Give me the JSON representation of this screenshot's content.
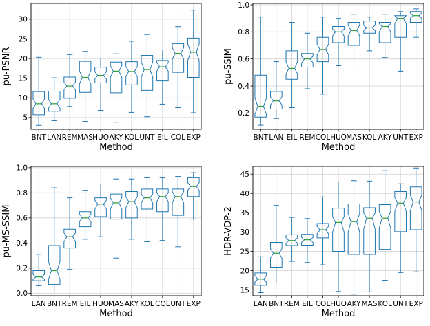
{
  "chart_data": [
    {
      "type": "boxplot",
      "xlabel": "Method",
      "ylabel": "pu-PSNR",
      "ylim": [
        2,
        34
      ],
      "yticks": [
        5,
        10,
        15,
        20,
        25,
        30
      ],
      "grid": true,
      "notched": true,
      "box_color": "#1f77b4",
      "median_color": "#2ca02c",
      "categories": [
        "BNT",
        "LAN",
        "REM",
        "MAS",
        "HUO",
        "AKY",
        "KOL",
        "UNT",
        "EIL",
        "COL",
        "EXP"
      ],
      "series": [
        {
          "category": "BNT",
          "whisker_low": 3.0,
          "q1": 5.7,
          "median": 8.5,
          "q3": 11.6,
          "whisker_high": 20.3,
          "notch": [
            7.3,
            9.7
          ]
        },
        {
          "category": "LAN",
          "whisker_low": 4.2,
          "q1": 6.6,
          "median": 8.5,
          "q3": 11.7,
          "whisker_high": 15.1,
          "notch": [
            7.4,
            9.6
          ]
        },
        {
          "category": "REM",
          "whisker_low": 7.8,
          "q1": 9.9,
          "median": 13.0,
          "q3": 15.3,
          "whisker_high": 21.0,
          "notch": [
            12.0,
            14.0
          ]
        },
        {
          "category": "MAS",
          "whisker_low": 4.0,
          "q1": 11.4,
          "median": 15.2,
          "q3": 19.3,
          "whisker_high": 21.8,
          "notch": [
            13.5,
            16.9
          ]
        },
        {
          "category": "HUO",
          "whisker_low": 6.8,
          "q1": 13.8,
          "median": 15.7,
          "q3": 17.8,
          "whisker_high": 20.1,
          "notch": [
            14.8,
            16.6
          ]
        },
        {
          "category": "AKY",
          "whisker_low": 3.8,
          "q1": 11.3,
          "median": 16.8,
          "q3": 19.1,
          "whisker_high": 21.2,
          "notch": [
            15.2,
            18.2
          ]
        },
        {
          "category": "KOL",
          "whisker_low": 6.3,
          "q1": 13.3,
          "median": 16.7,
          "q3": 19.2,
          "whisker_high": 24.4,
          "notch": [
            15.4,
            18.0
          ]
        },
        {
          "category": "UNT",
          "whisker_low": 5.2,
          "q1": 11.9,
          "median": 17.2,
          "q3": 20.8,
          "whisker_high": 26.1,
          "notch": [
            15.3,
            19.1
          ]
        },
        {
          "category": "EIL",
          "whisker_low": 8.4,
          "q1": 14.3,
          "median": 17.9,
          "q3": 19.5,
          "whisker_high": 22.2,
          "notch": [
            16.8,
            19.0
          ]
        },
        {
          "category": "COL",
          "whisker_low": 7.5,
          "q1": 16.5,
          "median": 21.3,
          "q3": 23.8,
          "whisker_high": 28.1,
          "notch": [
            19.8,
            22.8
          ]
        },
        {
          "category": "EXP",
          "whisker_low": 6.2,
          "q1": 15.2,
          "median": 21.6,
          "q3": 25.2,
          "whisker_high": 32.3,
          "notch": [
            19.5,
            23.7
          ]
        }
      ]
    },
    {
      "type": "boxplot",
      "xlabel": "Method",
      "ylabel": "pu-SSIM",
      "ylim": [
        0.08,
        1.01
      ],
      "yticks": [
        0.2,
        0.4,
        0.6,
        0.8,
        1.0
      ],
      "grid": true,
      "notched": true,
      "box_color": "#1f77b4",
      "median_color": "#2ca02c",
      "categories": [
        "BNT",
        "LAN",
        "EIL",
        "REM",
        "COL",
        "HUO",
        "MAS",
        "KOL",
        "AKY",
        "UNT",
        "EXP"
      ],
      "series": [
        {
          "category": "BNT",
          "whisker_low": 0.11,
          "q1": 0.17,
          "median": 0.25,
          "q3": 0.48,
          "whisker_high": 0.91,
          "notch": [
            0.19,
            0.31
          ]
        },
        {
          "category": "LAN",
          "whisker_low": 0.16,
          "q1": 0.23,
          "median": 0.29,
          "q3": 0.36,
          "whisker_high": 0.58,
          "notch": [
            0.26,
            0.32
          ]
        },
        {
          "category": "EIL",
          "whisker_low": 0.24,
          "q1": 0.45,
          "median": 0.53,
          "q3": 0.66,
          "whisker_high": 0.87,
          "notch": [
            0.49,
            0.58
          ]
        },
        {
          "category": "REM",
          "whisker_low": 0.38,
          "q1": 0.54,
          "median": 0.6,
          "q3": 0.64,
          "whisker_high": 0.79,
          "notch": [
            0.57,
            0.62
          ]
        },
        {
          "category": "COL",
          "whisker_low": 0.34,
          "q1": 0.58,
          "median": 0.67,
          "q3": 0.76,
          "whisker_high": 0.91,
          "notch": [
            0.63,
            0.71
          ]
        },
        {
          "category": "HUO",
          "whisker_low": 0.55,
          "q1": 0.72,
          "median": 0.8,
          "q3": 0.84,
          "whisker_high": 0.9,
          "notch": [
            0.77,
            0.82
          ]
        },
        {
          "category": "MAS",
          "whisker_low": 0.54,
          "q1": 0.7,
          "median": 0.81,
          "q3": 0.87,
          "whisker_high": 0.93,
          "notch": [
            0.77,
            0.85
          ]
        },
        {
          "category": "KOL",
          "whisker_low": 0.66,
          "q1": 0.79,
          "median": 0.83,
          "q3": 0.88,
          "whisker_high": 0.91,
          "notch": [
            0.81,
            0.85
          ]
        },
        {
          "category": "AKY",
          "whisker_low": 0.61,
          "q1": 0.72,
          "median": 0.84,
          "q3": 0.87,
          "whisker_high": 0.93,
          "notch": [
            0.8,
            0.86
          ]
        },
        {
          "category": "UNT",
          "whisker_low": 0.51,
          "q1": 0.76,
          "median": 0.9,
          "q3": 0.92,
          "whisker_high": 0.95,
          "notch": [
            0.86,
            0.92
          ]
        },
        {
          "category": "EXP",
          "whisker_low": 0.76,
          "q1": 0.87,
          "median": 0.92,
          "q3": 0.95,
          "whisker_high": 0.97,
          "notch": [
            0.9,
            0.94
          ]
        }
      ]
    },
    {
      "type": "boxplot",
      "xlabel": "Method",
      "ylabel": "pu-MS-SSIM",
      "ylim": [
        -0.02,
        1.01
      ],
      "yticks": [
        0.0,
        0.2,
        0.4,
        0.6,
        0.8,
        1.0
      ],
      "grid": true,
      "notched": true,
      "box_color": "#1f77b4",
      "median_color": "#2ca02c",
      "categories": [
        "LAN",
        "BNT",
        "REM",
        "EIL",
        "HUO",
        "MAS",
        "AKY",
        "KOL",
        "COL",
        "UNT",
        "EXP"
      ],
      "series": [
        {
          "category": "LAN",
          "whisker_low": 0.06,
          "q1": 0.1,
          "median": 0.13,
          "q3": 0.18,
          "whisker_high": 0.31,
          "notch": [
            0.11,
            0.15
          ]
        },
        {
          "category": "BNT",
          "whisker_low": 0.01,
          "q1": 0.07,
          "median": 0.18,
          "q3": 0.38,
          "whisker_high": 0.84,
          "notch": [
            0.11,
            0.25
          ]
        },
        {
          "category": "REM",
          "whisker_low": 0.19,
          "q1": 0.36,
          "median": 0.45,
          "q3": 0.51,
          "whisker_high": 0.76,
          "notch": [
            0.41,
            0.48
          ]
        },
        {
          "category": "EIL",
          "whisker_low": 0.43,
          "q1": 0.53,
          "median": 0.6,
          "q3": 0.65,
          "whisker_high": 0.82,
          "notch": [
            0.57,
            0.63
          ]
        },
        {
          "category": "HUO",
          "whisker_low": 0.45,
          "q1": 0.61,
          "median": 0.71,
          "q3": 0.76,
          "whisker_high": 0.87,
          "notch": [
            0.67,
            0.74
          ]
        },
        {
          "category": "MAS",
          "whisker_low": 0.28,
          "q1": 0.59,
          "median": 0.72,
          "q3": 0.79,
          "whisker_high": 0.91,
          "notch": [
            0.67,
            0.76
          ]
        },
        {
          "category": "AKY",
          "whisker_low": 0.43,
          "q1": 0.6,
          "median": 0.73,
          "q3": 0.81,
          "whisker_high": 0.91,
          "notch": [
            0.68,
            0.77
          ]
        },
        {
          "category": "KOL",
          "whisker_low": 0.41,
          "q1": 0.67,
          "median": 0.76,
          "q3": 0.83,
          "whisker_high": 0.92,
          "notch": [
            0.72,
            0.79
          ]
        },
        {
          "category": "COL",
          "whisker_low": 0.42,
          "q1": 0.65,
          "median": 0.77,
          "q3": 0.83,
          "whisker_high": 0.92,
          "notch": [
            0.73,
            0.8
          ]
        },
        {
          "category": "UNT",
          "whisker_low": 0.37,
          "q1": 0.62,
          "median": 0.77,
          "q3": 0.83,
          "whisker_high": 0.93,
          "notch": [
            0.72,
            0.81
          ]
        },
        {
          "category": "EXP",
          "whisker_low": 0.59,
          "q1": 0.77,
          "median": 0.85,
          "q3": 0.92,
          "whisker_high": 0.96,
          "notch": [
            0.82,
            0.88
          ]
        }
      ]
    },
    {
      "type": "boxplot",
      "xlabel": "Method",
      "ylabel": "HDR-VDP-2",
      "ylim": [
        13.5,
        47
      ],
      "yticks": [
        15,
        20,
        25,
        30,
        35,
        40,
        45
      ],
      "grid": true,
      "notched": true,
      "box_color": "#1f77b4",
      "median_color": "#2ca02c",
      "categories": [
        "LAN",
        "BNT",
        "REM",
        "EIL",
        "COL",
        "HUO",
        "AKY",
        "MAS",
        "KOL",
        "UNT",
        "EXP"
      ],
      "series": [
        {
          "category": "LAN",
          "whisker_low": 14.3,
          "q1": 16.2,
          "median": 17.8,
          "q3": 19.4,
          "whisker_high": 23.6,
          "notch": [
            17.0,
            18.7
          ]
        },
        {
          "category": "BNT",
          "whisker_low": 16.8,
          "q1": 20.9,
          "median": 24.5,
          "q3": 27.3,
          "whisker_high": 36.9,
          "notch": [
            23.2,
            25.7
          ]
        },
        {
          "category": "REM",
          "whisker_low": 22.4,
          "q1": 26.5,
          "median": 27.8,
          "q3": 29.3,
          "whisker_high": 33.8,
          "notch": [
            27.1,
            28.5
          ]
        },
        {
          "category": "EIL",
          "whisker_low": 22.1,
          "q1": 26.6,
          "median": 28.0,
          "q3": 29.4,
          "whisker_high": 33.5,
          "notch": [
            27.3,
            28.6
          ]
        },
        {
          "category": "COL",
          "whisker_low": 21.5,
          "q1": 28.5,
          "median": 30.6,
          "q3": 32.2,
          "whisker_high": 39.1,
          "notch": [
            29.5,
            31.5
          ]
        },
        {
          "category": "HUO",
          "whisker_low": 14.6,
          "q1": 25.0,
          "median": 32.5,
          "q3": 36.2,
          "whisker_high": 43.0,
          "notch": [
            30.0,
            34.0
          ]
        },
        {
          "category": "AKY",
          "whisker_low": 13.9,
          "q1": 24.2,
          "median": 32.7,
          "q3": 37.3,
          "whisker_high": 43.3,
          "notch": [
            30.0,
            34.8
          ]
        },
        {
          "category": "MAS",
          "whisker_low": 14.5,
          "q1": 24.2,
          "median": 33.6,
          "q3": 36.3,
          "whisker_high": 43.2,
          "notch": [
            30.7,
            35.0
          ]
        },
        {
          "category": "KOL",
          "whisker_low": 17.5,
          "q1": 25.5,
          "median": 33.6,
          "q3": 37.1,
          "whisker_high": 45.9,
          "notch": [
            31.0,
            35.4
          ]
        },
        {
          "category": "UNT",
          "whisker_low": 19.5,
          "q1": 30.1,
          "median": 37.5,
          "q3": 40.5,
          "whisker_high": 42.5,
          "notch": [
            35.3,
            39.0
          ]
        },
        {
          "category": "EXP",
          "whisker_low": 19.7,
          "q1": 30.6,
          "median": 37.8,
          "q3": 41.7,
          "whisker_high": 46.6,
          "notch": [
            35.5,
            39.6
          ]
        }
      ]
    }
  ]
}
